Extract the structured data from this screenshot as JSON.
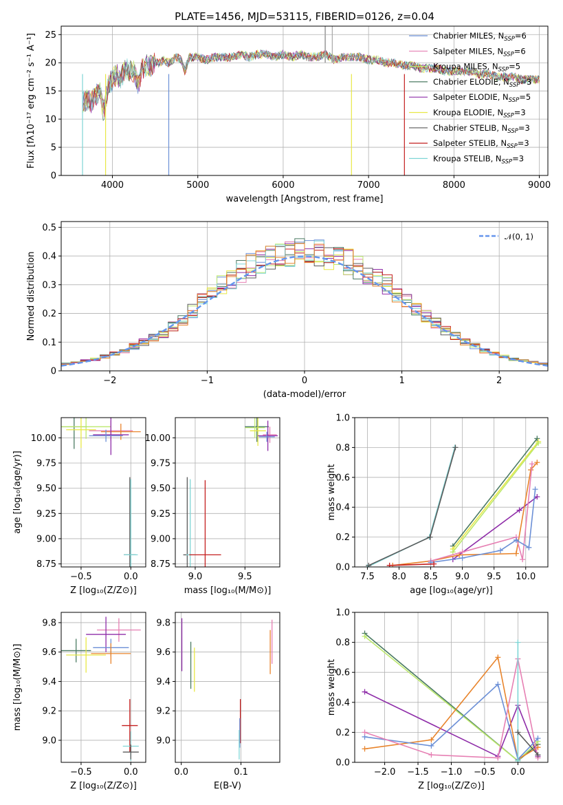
{
  "colors": {
    "Chabrier MILES": "#6b8fd6",
    "Salpeter MILES": "#e67fb3",
    "Kroupa MILES": "#bce86c",
    "Chabrier ELODIE": "#4a7a62",
    "Salpeter ELODIE": "#8e2ca8",
    "Kroupa ELODIE": "#e8e844",
    "Chabrier STELIB": "#5a5a5a",
    "Salpeter STELIB": "#c41e1e",
    "Kroupa STELIB": "#7fd6d6",
    "gauss": "#6495ed",
    "orange": "#e8832a"
  },
  "chart_data": [
    {
      "id": "spectrum",
      "type": "line",
      "title": "PLATE=1456, MJD=53115, FIBERID=0126, z=0.04",
      "xlabel": "wavelength [Angstrom, rest frame]",
      "ylabel": "Flux [fλ10⁻¹⁷ erg cm⁻² s⁻¹ A⁻¹]",
      "xlim": [
        3400,
        9100
      ],
      "ylim": [
        0,
        26.5
      ],
      "xticks": [
        4000,
        5000,
        6000,
        7000,
        8000,
        9000
      ],
      "yticks": [
        0,
        5,
        10,
        15,
        20,
        25
      ],
      "legend_position": "upper right",
      "legend": [
        {
          "name": "Chabrier MILES",
          "nssp": "6"
        },
        {
          "name": "Salpeter MILES",
          "nssp": "6"
        },
        {
          "name": "Kroupa MILES",
          "nssp": "5"
        },
        {
          "name": "Chabrier ELODIE",
          "nssp": "3"
        },
        {
          "name": "Salpeter ELODIE",
          "nssp": "5"
        },
        {
          "name": "Kroupa ELODIE",
          "nssp": "3"
        },
        {
          "name": "Chabrier STELIB",
          "nssp": "3"
        },
        {
          "name": "Salpeter STELIB",
          "nssp": "3"
        },
        {
          "name": "Kroupa STELIB",
          "nssp": "3"
        }
      ],
      "spectrum_x": [
        3650,
        3700,
        3750,
        3800,
        3850,
        3900,
        3950,
        4000,
        4050,
        4100,
        4150,
        4200,
        4250,
        4300,
        4350,
        4400,
        4450,
        4500,
        4550,
        4600,
        4650,
        4700,
        4750,
        4800,
        4850,
        4900,
        5000,
        5100,
        5200,
        5300,
        5400,
        5500,
        5600,
        5700,
        5800,
        5900,
        6000,
        6100,
        6200,
        6300,
        6400,
        6500,
        6600,
        6700,
        6800,
        6900,
        7000,
        7100,
        7200,
        7300,
        7400,
        7500,
        7600,
        7700,
        7800,
        7900,
        8000,
        8100,
        8200,
        8300,
        8400,
        8500,
        8600,
        8700,
        8800,
        8900,
        9000
      ],
      "spectrum_y": [
        13,
        13.5,
        13,
        14,
        15,
        11,
        16,
        17,
        18,
        17,
        19,
        18.5,
        18.5,
        16,
        19,
        19.5,
        19.5,
        20,
        20,
        20.5,
        20,
        20.5,
        21,
        20.5,
        18.5,
        21,
        21,
        20.5,
        21,
        21,
        21,
        21.5,
        21,
        21.5,
        21.5,
        21,
        21.5,
        21,
        21.5,
        21,
        21,
        21.5,
        20.5,
        21,
        21,
        21,
        20.5,
        20.5,
        20,
        20,
        19.5,
        19.5,
        19,
        19,
        19,
        18.5,
        18.5,
        18.5,
        18.5,
        18,
        18,
        17.5,
        17.5,
        17.5,
        17,
        17,
        17
      ]
    },
    {
      "id": "residuals",
      "type": "line",
      "xlabel": "(data-model)/error",
      "ylabel": "Normed distribution",
      "xlim": [
        -2.5,
        2.5
      ],
      "ylim": [
        0,
        0.52
      ],
      "xticks": [
        -2,
        -1,
        0,
        1,
        2
      ],
      "yticks": [
        0.0,
        0.1,
        0.2,
        0.3,
        0.4,
        0.5
      ],
      "legend_position": "upper right",
      "legend_gauss": "𝒩(0, 1)",
      "bin_centers": [
        -2.45,
        -2.35,
        -2.25,
        -2.15,
        -2.05,
        -1.95,
        -1.85,
        -1.75,
        -1.65,
        -1.55,
        -1.45,
        -1.35,
        -1.25,
        -1.15,
        -1.05,
        -0.95,
        -0.85,
        -0.75,
        -0.65,
        -0.55,
        -0.45,
        -0.35,
        -0.25,
        -0.15,
        -0.05,
        0.05,
        0.15,
        0.25,
        0.35,
        0.45,
        0.55,
        0.65,
        0.75,
        0.85,
        0.95,
        1.05,
        1.15,
        1.25,
        1.35,
        1.45,
        1.55,
        1.65,
        1.75,
        1.85,
        1.95,
        2.05,
        2.15,
        2.25,
        2.35,
        2.45
      ],
      "hist_base": [
        0.025,
        0.03,
        0.035,
        0.04,
        0.05,
        0.06,
        0.07,
        0.085,
        0.1,
        0.115,
        0.13,
        0.155,
        0.18,
        0.21,
        0.24,
        0.27,
        0.3,
        0.32,
        0.345,
        0.365,
        0.38,
        0.39,
        0.4,
        0.41,
        0.42,
        0.42,
        0.41,
        0.4,
        0.39,
        0.38,
        0.36,
        0.34,
        0.32,
        0.3,
        0.27,
        0.245,
        0.22,
        0.19,
        0.165,
        0.14,
        0.12,
        0.1,
        0.085,
        0.07,
        0.06,
        0.05,
        0.04,
        0.035,
        0.03,
        0.025
      ]
    },
    {
      "id": "age_vs_Z",
      "type": "scatter",
      "xlabel": "Z [log₁₀(Z/Z⊙)]",
      "ylabel": "age  [log₁₀(age/yr)]",
      "xlim": [
        -0.7,
        0.15
      ],
      "ylim": [
        8.72,
        10.2
      ],
      "xticks": [
        -0.5,
        0.0
      ],
      "xticklabels": [
        "−0.5",
        "0.0"
      ],
      "yticks": [
        8.75,
        9.0,
        9.25,
        9.5,
        9.75,
        10.0
      ],
      "yticklabels": [
        "8.75",
        "9.00",
        "9.25",
        "9.50",
        "9.75",
        "10.00"
      ],
      "points": [
        {
          "series": "Chabrier ELODIE",
          "x": -0.57,
          "y": 10.11,
          "xerr": 0.13,
          "yerr": 0.22
        },
        {
          "series": "Kroupa MILES",
          "x": -0.45,
          "y": 10.11,
          "xerr": 0.25,
          "yerr": 0.12
        },
        {
          "series": "Kroupa ELODIE",
          "x": -0.5,
          "y": 10.08,
          "xerr": 0.15,
          "yerr": 0.18
        },
        {
          "series": "Salpeter MILES",
          "x": -0.2,
          "y": 10.07,
          "xerr": 0.22,
          "yerr": 0.1
        },
        {
          "series": "orange",
          "x": -0.1,
          "y": 10.06,
          "xerr": 0.2,
          "yerr": 0.08
        },
        {
          "series": "Salpeter ELODIE",
          "x": -0.2,
          "y": 10.03,
          "xerr": 0.18,
          "yerr": 0.2
        },
        {
          "series": "Chabrier MILES",
          "x": -0.25,
          "y": 10.02,
          "xerr": 0.17,
          "yerr": 0.06
        },
        {
          "series": "Chabrier STELIB",
          "x": -0.01,
          "y": 8.84,
          "xerr": 0.06,
          "yerr": 0.77
        },
        {
          "series": "Kroupa STELIB",
          "x": -0.0,
          "y": 8.84,
          "xerr": 0.07,
          "yerr": 0.75
        }
      ]
    },
    {
      "id": "age_vs_mass",
      "type": "scatter",
      "xlabel": "mass [log₁₀(M/M⊙)]",
      "xlim": [
        8.8,
        9.85
      ],
      "ylim": [
        8.72,
        10.2
      ],
      "xticks": [
        9.0,
        9.5
      ],
      "xticklabels": [
        "9.0",
        "9.5"
      ],
      "yticks": [
        8.75,
        9.0,
        9.25,
        9.5,
        9.75,
        10.0
      ],
      "yticklabels": [
        "8.75",
        "9.00",
        "9.25",
        "9.50",
        "9.75",
        "10.00"
      ],
      "points": [
        {
          "series": "Chabrier ELODIE",
          "x": 9.62,
          "y": 10.11,
          "xerr": 0.12,
          "yerr": 0.15
        },
        {
          "series": "Kroupa MILES",
          "x": 9.6,
          "y": 10.1,
          "xerr": 0.1,
          "yerr": 0.1
        },
        {
          "series": "Kroupa ELODIE",
          "x": 9.63,
          "y": 10.07,
          "xerr": 0.08,
          "yerr": 0.15
        },
        {
          "series": "Salpeter MILES",
          "x": 9.75,
          "y": 10.03,
          "xerr": 0.07,
          "yerr": 0.08
        },
        {
          "series": "Salpeter ELODIE",
          "x": 9.73,
          "y": 10.02,
          "xerr": 0.1,
          "yerr": 0.15
        },
        {
          "series": "Chabrier MILES",
          "x": 9.72,
          "y": 10.01,
          "xerr": 0.08,
          "yerr": 0.05
        },
        {
          "series": "Chabrier STELIB",
          "x": 8.92,
          "y": 8.84,
          "xerr": 0.04,
          "yerr": 0.77
        },
        {
          "series": "Kroupa STELIB",
          "x": 8.95,
          "y": 8.84,
          "xerr": 0.04,
          "yerr": 0.75
        },
        {
          "series": "Salpeter STELIB",
          "x": 9.1,
          "y": 8.84,
          "xerr": 0.16,
          "yerr": 0.74
        }
      ]
    },
    {
      "id": "weight_vs_age",
      "type": "line",
      "xlabel": "age  [log₁₀(age/yr)]",
      "ylabel": "mass weight",
      "xlim": [
        7.3,
        10.35
      ],
      "ylim": [
        0,
        1.0
      ],
      "xticks": [
        7.5,
        8.0,
        8.5,
        9.0,
        9.5,
        10.0
      ],
      "xticklabels": [
        "7.5",
        "8.0",
        "8.5",
        "9.0",
        "9.5",
        "10.0"
      ],
      "yticks": [
        0.0,
        0.2,
        0.4,
        0.6,
        0.8,
        1.0
      ],
      "yticklabels": [
        "0.0",
        "0.2",
        "0.4",
        "0.6",
        "0.8",
        "1.0"
      ],
      "series": [
        {
          "name": "Kroupa STELIB",
          "x": [
            7.5,
            8.48,
            8.88
          ],
          "y": [
            0.0,
            0.2,
            0.8
          ]
        },
        {
          "name": "Chabrier STELIB",
          "x": [
            7.52,
            8.49,
            8.89
          ],
          "y": [
            0.01,
            0.2,
            0.8
          ]
        },
        {
          "name": "Chabrier ELODIE",
          "x": [
            8.85,
            10.18
          ],
          "y": [
            0.14,
            0.86
          ]
        },
        {
          "name": "Kroupa ELODIE",
          "x": [
            8.85,
            10.2
          ],
          "y": [
            0.12,
            0.84
          ]
        },
        {
          "name": "Kroupa MILES",
          "x": [
            8.85,
            10.2
          ],
          "y": [
            0.1,
            0.83
          ]
        },
        {
          "name": "Salpeter ELODIE",
          "x": [
            8.85,
            9.9,
            10.18
          ],
          "y": [
            0.05,
            0.38,
            0.47
          ]
        },
        {
          "name": "orange",
          "x": [
            7.9,
            8.5,
            8.95,
            9.85,
            10.08,
            10.18
          ],
          "y": [
            0.01,
            0.04,
            0.08,
            0.09,
            0.65,
            0.7
          ]
        },
        {
          "name": "Salpeter MILES",
          "x": [
            8.5,
            9.0,
            9.85,
            9.95,
            10.1
          ],
          "y": [
            0.04,
            0.1,
            0.2,
            0.05,
            0.69
          ]
        },
        {
          "name": "Chabrier MILES",
          "x": [
            8.5,
            9.0,
            9.6,
            9.85,
            10.05,
            10.15
          ],
          "y": [
            0.03,
            0.06,
            0.11,
            0.18,
            0.13,
            0.52
          ]
        },
        {
          "name": "Salpeter STELIB",
          "x": [
            7.85,
            8.55
          ],
          "y": [
            0.01,
            0.02
          ]
        }
      ]
    },
    {
      "id": "mass_vs_Z",
      "type": "scatter",
      "xlabel": "Z [log₁₀(Z/Z⊙)]",
      "ylabel": "mass [log₁₀(M/M⊙)]",
      "xlim": [
        -0.7,
        0.15
      ],
      "ylim": [
        8.85,
        9.87
      ],
      "xticks": [
        -0.5,
        0.0
      ],
      "xticklabels": [
        "−0.5",
        "0.0"
      ],
      "yticks": [
        9.0,
        9.2,
        9.4,
        9.6,
        9.8
      ],
      "yticklabels": [
        "9.0",
        "9.2",
        "9.4",
        "9.6",
        "9.8"
      ],
      "points": [
        {
          "series": "Salpeter MILES",
          "x": -0.12,
          "y": 9.75,
          "xerr": 0.22,
          "yerr": 0.08
        },
        {
          "series": "Salpeter ELODIE",
          "x": -0.25,
          "y": 9.72,
          "xerr": 0.2,
          "yerr": 0.12
        },
        {
          "series": "Chabrier MILES",
          "x": -0.2,
          "y": 9.63,
          "xerr": 0.18,
          "yerr": 0.06
        },
        {
          "series": "Chabrier ELODIE",
          "x": -0.55,
          "y": 9.61,
          "xerr": 0.15,
          "yerr": 0.08
        },
        {
          "series": "orange",
          "x": -0.2,
          "y": 9.59,
          "xerr": 0.2,
          "yerr": 0.07
        },
        {
          "series": "Kroupa ELODIE",
          "x": -0.45,
          "y": 9.58,
          "xerr": 0.2,
          "yerr": 0.12
        },
        {
          "series": "Salpeter STELIB",
          "x": -0.01,
          "y": 9.1,
          "xerr": 0.08,
          "yerr": 0.18
        },
        {
          "series": "Kroupa STELIB",
          "x": 0.0,
          "y": 8.96,
          "xerr": 0.08,
          "yerr": 0.1
        },
        {
          "series": "Chabrier STELIB",
          "x": 0.0,
          "y": 8.92,
          "xerr": 0.08,
          "yerr": 0.05
        }
      ]
    },
    {
      "id": "mass_vs_EBV",
      "type": "scatter",
      "xlabel": "E(B-V)",
      "xlim": [
        -0.01,
        0.165
      ],
      "ylim": [
        8.85,
        9.87
      ],
      "xticks": [
        0.0,
        0.1
      ],
      "xticklabels": [
        "0.0",
        "0.1"
      ],
      "yticks": [
        9.0,
        9.2,
        9.4,
        9.6,
        9.8
      ],
      "yticklabels": [
        "9.0",
        "9.2",
        "9.4",
        "9.6",
        "9.8"
      ],
      "points": [
        {
          "series": "Salpeter ELODIE",
          "x": 0.001,
          "y": 9.65,
          "xerr": 0.0,
          "yerr": 0.18
        },
        {
          "series": "Chabrier ELODIE",
          "x": 0.016,
          "y": 9.51,
          "xerr": 0.0,
          "yerr": 0.16
        },
        {
          "series": "Kroupa ELODIE",
          "x": 0.022,
          "y": 9.48,
          "xerr": 0.0,
          "yerr": 0.15
        },
        {
          "series": "Salpeter MILES",
          "x": 0.152,
          "y": 9.67,
          "xerr": 0.0,
          "yerr": 0.15
        },
        {
          "series": "orange",
          "x": 0.149,
          "y": 9.6,
          "xerr": 0.0,
          "yerr": 0.15
        },
        {
          "series": "Salpeter STELIB",
          "x": 0.099,
          "y": 9.13,
          "xerr": 0.0,
          "yerr": 0.15
        },
        {
          "series": "Chabrier MILES",
          "x": 0.098,
          "y": 9.05,
          "xerr": 0.0,
          "yerr": 0.1
        },
        {
          "series": "Kroupa STELIB",
          "x": 0.097,
          "y": 8.97,
          "xerr": 0.0,
          "yerr": 0.1
        }
      ]
    },
    {
      "id": "weight_vs_Z",
      "type": "line",
      "xlabel": "Z [log₁₀(Z/Z⊙)]",
      "ylabel": "mass weight",
      "xlim": [
        -2.45,
        0.45
      ],
      "ylim": [
        0,
        1.0
      ],
      "xticks": [
        -2.0,
        -1.5,
        -1.0,
        -0.5,
        0.0
      ],
      "xticklabels": [
        "−2.0",
        "−1.5",
        "−1.0",
        "−0.5",
        "0.0"
      ],
      "yticks": [
        0.0,
        0.2,
        0.4,
        0.6,
        0.8,
        1.0
      ],
      "yticklabels": [
        "0.0",
        "0.2",
        "0.4",
        "0.6",
        "0.8",
        "1.0"
      ],
      "series": [
        {
          "name": "Chabrier ELODIE",
          "x": [
            -2.3,
            0.0,
            0.3
          ],
          "y": [
            0.86,
            0.01,
            0.12
          ]
        },
        {
          "name": "Kroupa MILES",
          "x": [
            -2.3,
            0.0,
            0.3
          ],
          "y": [
            0.84,
            0.01,
            0.14
          ]
        },
        {
          "name": "Salpeter ELODIE",
          "x": [
            -2.3,
            -0.3,
            0.0,
            0.3
          ],
          "y": [
            0.47,
            0.04,
            0.38,
            0.04
          ]
        },
        {
          "name": "orange",
          "x": [
            -2.3,
            -1.3,
            -0.3,
            0.0,
            0.3
          ],
          "y": [
            0.09,
            0.15,
            0.7,
            0.02,
            0.1
          ]
        },
        {
          "name": "Chabrier MILES",
          "x": [
            -2.3,
            -1.3,
            -0.3,
            0.0,
            0.3
          ],
          "y": [
            0.17,
            0.11,
            0.52,
            0.02,
            0.16
          ]
        },
        {
          "name": "Salpeter MILES",
          "x": [
            -2.3,
            -1.3,
            -0.3,
            0.0,
            0.3
          ],
          "y": [
            0.2,
            0.05,
            0.03,
            0.69,
            0.03
          ]
        },
        {
          "name": "Kroupa STELIB",
          "x": [
            0.0,
            0.0
          ],
          "y": [
            0.01,
            0.8
          ]
        },
        {
          "name": "Chabrier STELIB",
          "x": [
            0.0,
            0.3
          ],
          "y": [
            0.2,
            0.05
          ]
        }
      ]
    }
  ]
}
